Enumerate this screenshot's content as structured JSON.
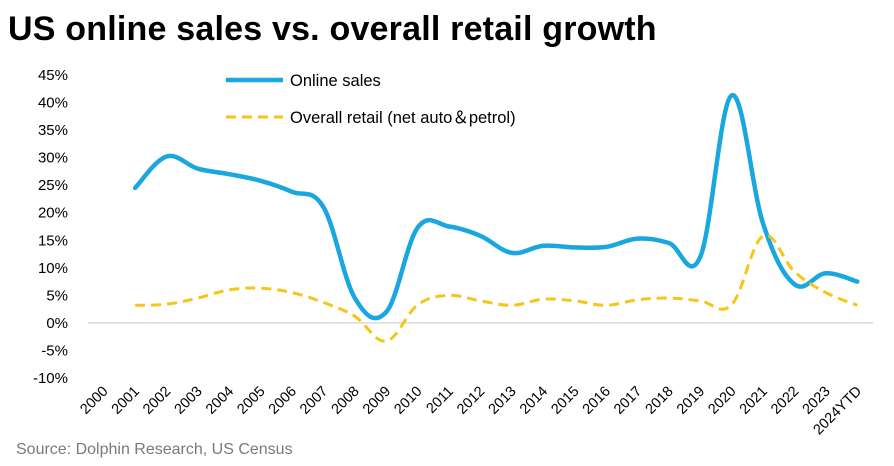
{
  "title": "US online sales vs. overall retail growth",
  "source": "Source: Dolphin Research, US Census",
  "colors": {
    "online": "#1AA7E0",
    "retail": "#F5C518",
    "zero_line": "#c8c8c8"
  },
  "chart_data": {
    "type": "line",
    "title": "US online sales vs. overall retail growth",
    "xlabel": "",
    "ylabel": "",
    "ylim": [
      -10,
      45
    ],
    "yticks": [
      "-10%",
      "-5%",
      "0%",
      "5%",
      "10%",
      "15%",
      "20%",
      "25%",
      "30%",
      "35%",
      "40%",
      "45%"
    ],
    "categories": [
      "2000",
      "2001",
      "2002",
      "2003",
      "2004",
      "2005",
      "2006",
      "2007",
      "2008",
      "2009",
      "2010",
      "2011",
      "2012",
      "2013",
      "2014",
      "2015",
      "2016",
      "2017",
      "2018",
      "2019",
      "2020",
      "2021",
      "2022",
      "2023",
      "2024YTD"
    ],
    "grid": false,
    "legend_position": "top",
    "series": [
      {
        "name": "Online sales",
        "style": "solid",
        "values": [
          null,
          24.5,
          30.2,
          28,
          27,
          25.8,
          23.8,
          21,
          4.5,
          2,
          17.3,
          17.5,
          15.8,
          12.7,
          14,
          13.7,
          13.8,
          15.3,
          14.5,
          12,
          41.3,
          18,
          7,
          9,
          7.5
        ]
      },
      {
        "name": "Overall retail (net auto＆petrol)",
        "style": "dashed",
        "values": [
          null,
          3.2,
          3.4,
          4.5,
          6,
          6.3,
          5.5,
          3.7,
          1.2,
          -3.3,
          3.3,
          5,
          4,
          3.2,
          4.3,
          4,
          3.2,
          4.2,
          4.5,
          4,
          3.3,
          15.8,
          9.3,
          5.5,
          3.2
        ]
      }
    ]
  }
}
